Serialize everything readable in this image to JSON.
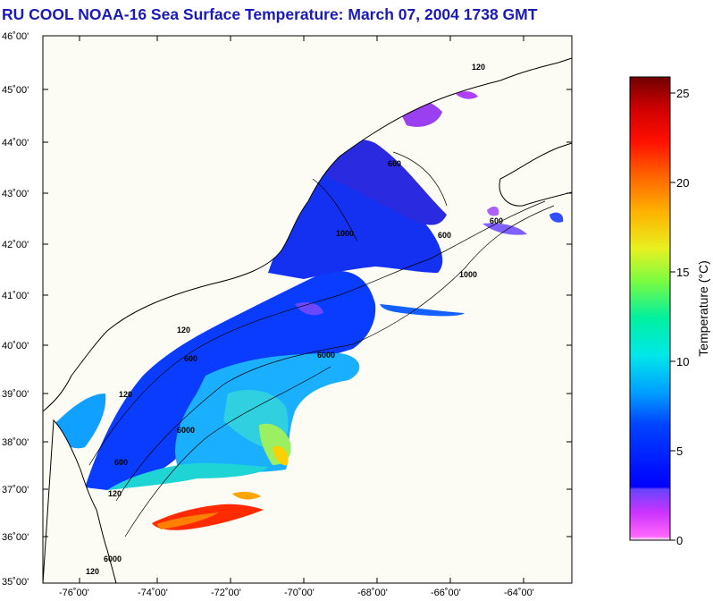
{
  "title": "RU COOL  NOAA-16  Sea Surface Temperature:  March 07, 2004 1738 GMT",
  "map": {
    "lat_labels": [
      "46˚00'",
      "45˚00'",
      "44˚00'",
      "43˚00'",
      "42˚00'",
      "41˚00'",
      "40˚00'",
      "39˚00'",
      "38˚00'",
      "37˚00'",
      "36˚00'",
      "35˚00'"
    ],
    "lon_labels": [
      "-76˚00'",
      "-74˚00'",
      "-72˚00'",
      "-70˚00'",
      "-68˚00'",
      "-66˚00'",
      "-64˚00'"
    ],
    "bathymetry_labels": [
      "120",
      "120",
      "120",
      "120",
      "120",
      "600",
      "600",
      "600",
      "600",
      "600",
      "6000",
      "6000",
      "1000",
      "1000",
      "6000"
    ],
    "colors": {
      "land": "#fcfcf4",
      "coast": "#000000",
      "grid_tick": "#000000"
    }
  },
  "colorbar": {
    "label": "Temperature (°C)",
    "tick_labels": [
      "25",
      "20",
      "15",
      "10",
      "5",
      "0"
    ],
    "range": [
      0,
      26
    ]
  }
}
